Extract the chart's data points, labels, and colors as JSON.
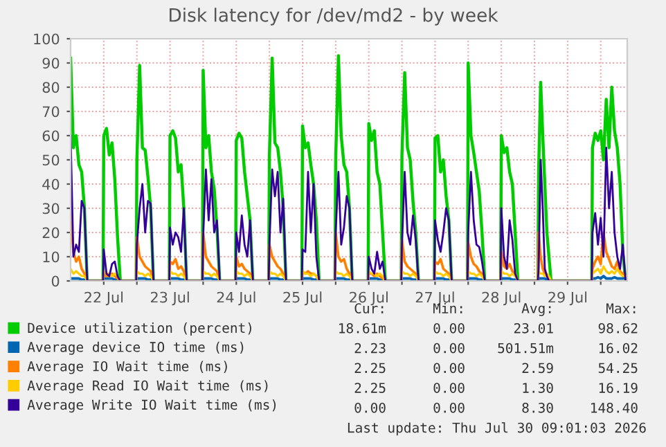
{
  "chart_data": {
    "type": "line",
    "title": "Disk latency for /dev/md2 - by week",
    "x": [
      "2026-07-22T00:00",
      "2026-07-22T01:00",
      "2026-07-22T02:00",
      "2026-07-22T03:00",
      "2026-07-22T04:00",
      "2026-07-22T05:00",
      "2026-07-22T06:00",
      "2026-07-22T11:45",
      "2026-07-22T12:00",
      "2026-07-22T13:00",
      "2026-07-22T14:00",
      "2026-07-22T15:00",
      "2026-07-22T16:00",
      "2026-07-22T17:00",
      "2026-07-22T18:00",
      "2026-07-22T23:45",
      "2026-07-23T00:00",
      "2026-07-23T01:00",
      "2026-07-23T02:00",
      "2026-07-23T03:00",
      "2026-07-23T04:00",
      "2026-07-23T05:00",
      "2026-07-23T06:00",
      "2026-07-23T11:45",
      "2026-07-23T12:00",
      "2026-07-23T13:00",
      "2026-07-23T14:00",
      "2026-07-23T15:00",
      "2026-07-23T16:00",
      "2026-07-23T17:00",
      "2026-07-23T18:00",
      "2026-07-23T23:45",
      "2026-07-24T00:00",
      "2026-07-24T01:00",
      "2026-07-24T02:00",
      "2026-07-24T03:00",
      "2026-07-24T04:00",
      "2026-07-24T05:00",
      "2026-07-24T06:00",
      "2026-07-24T11:45",
      "2026-07-24T12:00",
      "2026-07-24T13:00",
      "2026-07-24T14:00",
      "2026-07-24T15:00",
      "2026-07-24T16:00",
      "2026-07-24T17:00",
      "2026-07-24T18:00",
      "2026-07-24T23:45",
      "2026-07-25T00:00",
      "2026-07-25T01:00",
      "2026-07-25T02:00",
      "2026-07-25T03:00",
      "2026-07-25T04:00",
      "2026-07-25T05:00",
      "2026-07-25T06:00",
      "2026-07-25T11:45",
      "2026-07-25T12:00",
      "2026-07-25T13:00",
      "2026-07-25T14:00",
      "2026-07-25T15:00",
      "2026-07-25T16:00",
      "2026-07-25T17:00",
      "2026-07-25T18:00",
      "2026-07-25T23:45",
      "2026-07-26T00:00",
      "2026-07-26T01:00",
      "2026-07-26T02:00",
      "2026-07-26T03:00",
      "2026-07-26T04:00",
      "2026-07-26T05:00",
      "2026-07-26T06:00",
      "2026-07-26T11:45",
      "2026-07-26T12:00",
      "2026-07-26T13:00",
      "2026-07-26T14:00",
      "2026-07-26T15:00",
      "2026-07-26T16:00",
      "2026-07-26T17:00",
      "2026-07-26T18:00",
      "2026-07-26T23:45",
      "2026-07-27T00:00",
      "2026-07-27T01:00",
      "2026-07-27T02:00",
      "2026-07-27T03:00",
      "2026-07-27T04:00",
      "2026-07-27T05:00",
      "2026-07-27T06:00",
      "2026-07-27T11:45",
      "2026-07-27T12:00",
      "2026-07-27T13:00",
      "2026-07-27T14:00",
      "2026-07-27T15:00",
      "2026-07-27T16:00",
      "2026-07-27T17:00",
      "2026-07-27T18:00",
      "2026-07-27T23:45",
      "2026-07-28T00:00",
      "2026-07-28T01:00",
      "2026-07-28T02:00",
      "2026-07-28T03:00",
      "2026-07-28T04:00",
      "2026-07-28T05:00",
      "2026-07-28T06:00",
      "2026-07-28T11:45",
      "2026-07-28T12:00",
      "2026-07-28T13:00",
      "2026-07-28T14:00",
      "2026-07-28T15:00",
      "2026-07-28T16:00",
      "2026-07-28T17:00",
      "2026-07-28T18:00",
      "2026-07-29T01:15",
      "2026-07-29T01:30",
      "2026-07-29T02:15",
      "2026-07-29T03:00",
      "2026-07-29T03:45",
      "2026-07-29T04:30",
      "2026-07-29T05:15",
      "2026-07-29T06:00",
      "2026-07-29T20:45",
      "2026-07-29T21:00",
      "2026-07-29T22:00",
      "2026-07-29T23:00",
      "2026-07-30T00:00",
      "2026-07-30T01:00",
      "2026-07-30T02:00",
      "2026-07-30T03:00",
      "2026-07-30T04:00",
      "2026-07-30T05:00",
      "2026-07-30T06:00",
      "2026-07-30T07:00",
      "2026-07-30T08:00",
      "2026-07-30T09:00"
    ],
    "series": [
      {
        "name": "Device utilization (percent)",
        "color": "#00cc00",
        "values": [
          92,
          55,
          60,
          48,
          45,
          30,
          0,
          0,
          60,
          63,
          52,
          57,
          42,
          18,
          0,
          0,
          50,
          89,
          55,
          54,
          43,
          30,
          0,
          0,
          60,
          62,
          59,
          45,
          48,
          30,
          0,
          0,
          87,
          55,
          60,
          45,
          38,
          22,
          0,
          0,
          58,
          61,
          59,
          45,
          35,
          25,
          0,
          0,
          52,
          92,
          57,
          55,
          45,
          30,
          0,
          0,
          64,
          55,
          57,
          48,
          40,
          25,
          0,
          0,
          50,
          93,
          60,
          48,
          45,
          30,
          0,
          0,
          65,
          58,
          62,
          45,
          40,
          20,
          0,
          0,
          52,
          86,
          55,
          50,
          33,
          20,
          0,
          0,
          59,
          60,
          45,
          50,
          35,
          25,
          0,
          0,
          90,
          60,
          53,
          45,
          37,
          20,
          0,
          0,
          60,
          53,
          55,
          45,
          40,
          20,
          0,
          0,
          45,
          82,
          60,
          40,
          20,
          10,
          0,
          0,
          55,
          61,
          58,
          62,
          50,
          75,
          55,
          80,
          62,
          55,
          40,
          12,
          0
        ]
      },
      {
        "name": "Average device IO time (ms)",
        "color": "#0066b3",
        "values": [
          1,
          1,
          1,
          1,
          0.5,
          0.5,
          0,
          0,
          1,
          1,
          1,
          1,
          0.5,
          0.5,
          0,
          0,
          1,
          1,
          1,
          1,
          0.5,
          0.5,
          0,
          0,
          1,
          1,
          1,
          1,
          0.5,
          0.5,
          0,
          0,
          1,
          1,
          1,
          1,
          0.5,
          0.5,
          0,
          0,
          1,
          1,
          1,
          1,
          0.5,
          0.5,
          0,
          0,
          1,
          1,
          1,
          1,
          0.5,
          0.5,
          0,
          0,
          1,
          1,
          1,
          1,
          0.5,
          0.5,
          0,
          0,
          1,
          1,
          1,
          1,
          0.5,
          0.5,
          0,
          0,
          1,
          1,
          1,
          1,
          0.5,
          0.5,
          0,
          0,
          1,
          1,
          1,
          1,
          0.5,
          0.5,
          0,
          0,
          1,
          1,
          1,
          1,
          0.5,
          0.5,
          0,
          0,
          1,
          1,
          1,
          1,
          0.5,
          0.5,
          0,
          0,
          1,
          1,
          1,
          1,
          0.5,
          0.5,
          0,
          0,
          1,
          1,
          1,
          1,
          0.5,
          0.5,
          0,
          0,
          1,
          1,
          1.5,
          1,
          2,
          1,
          1,
          1,
          1.5,
          1,
          1,
          1,
          2
        ]
      },
      {
        "name": "Average IO Wait time (ms)",
        "color": "#ff8000",
        "values": [
          28,
          12,
          8,
          10,
          5,
          3,
          0,
          0,
          3,
          2,
          2,
          3,
          2,
          1,
          0,
          0,
          18,
          10,
          8,
          6,
          5,
          4,
          0,
          0,
          8,
          7,
          9,
          5,
          6,
          4,
          0,
          0,
          20,
          10,
          8,
          6,
          5,
          4,
          0,
          0,
          10,
          6,
          7,
          5,
          4,
          3,
          0,
          0,
          15,
          10,
          8,
          6,
          5,
          3,
          0,
          0,
          4,
          3,
          4,
          3,
          3,
          2,
          0,
          0,
          20,
          10,
          8,
          9,
          5,
          3,
          0,
          0,
          3,
          3,
          2,
          3,
          2,
          1,
          0,
          0,
          17,
          8,
          6,
          5,
          4,
          3,
          0,
          0,
          8,
          7,
          9,
          5,
          4,
          3,
          0,
          0,
          16,
          10,
          7,
          6,
          4,
          3,
          0,
          0,
          12,
          6,
          5,
          7,
          4,
          3,
          0,
          0,
          20,
          10,
          5,
          3,
          2,
          1,
          0,
          0,
          5,
          8,
          10,
          7,
          20,
          12,
          9,
          6,
          5,
          8,
          4,
          3,
          2
        ]
      },
      {
        "name": "Average Read IO Wait time (ms)",
        "color": "#ffcc00",
        "values": [
          5,
          3,
          4,
          3,
          2,
          2,
          0,
          0,
          4,
          3,
          3,
          2,
          3,
          2,
          0,
          0,
          4,
          3,
          3,
          2,
          3,
          2,
          0,
          0,
          4,
          3,
          3,
          2,
          3,
          2,
          0,
          0,
          4,
          3,
          3,
          2,
          3,
          2,
          0,
          0,
          4,
          3,
          3,
          2,
          3,
          2,
          0,
          0,
          4,
          3,
          3,
          2,
          3,
          2,
          0,
          0,
          4,
          3,
          3,
          2,
          3,
          2,
          0,
          0,
          4,
          3,
          3,
          2,
          3,
          2,
          0,
          0,
          4,
          3,
          3,
          2,
          3,
          2,
          0,
          0,
          4,
          3,
          3,
          2,
          3,
          2,
          0,
          0,
          4,
          3,
          3,
          2,
          3,
          2,
          0,
          0,
          4,
          3,
          3,
          2,
          3,
          2,
          0,
          0,
          4,
          3,
          3,
          2,
          3,
          2,
          0,
          0,
          4,
          3,
          3,
          2,
          3,
          2,
          0,
          0,
          3,
          4,
          5,
          3,
          6,
          4,
          3,
          4,
          3,
          5,
          3,
          2,
          2
        ]
      },
      {
        "name": "Average Write IO Wait time (ms)",
        "color": "#330099",
        "values": [
          60,
          10,
          15,
          12,
          33,
          30,
          0,
          0,
          13,
          3,
          2,
          7,
          8,
          2,
          0,
          0,
          15,
          30,
          40,
          20,
          33,
          32,
          0,
          0,
          22,
          15,
          20,
          18,
          12,
          30,
          0,
          0,
          18,
          46,
          25,
          42,
          20,
          25,
          0,
          0,
          20,
          12,
          27,
          15,
          10,
          25,
          0,
          0,
          15,
          46,
          35,
          45,
          20,
          34,
          0,
          0,
          13,
          12,
          45,
          20,
          40,
          10,
          0,
          0,
          20,
          45,
          15,
          22,
          35,
          30,
          0,
          0,
          10,
          5,
          3,
          12,
          5,
          8,
          0,
          0,
          15,
          45,
          20,
          15,
          27,
          17,
          0,
          0,
          25,
          17,
          12,
          20,
          30,
          25,
          0,
          0,
          20,
          45,
          25,
          15,
          14,
          8,
          0,
          0,
          30,
          10,
          5,
          25,
          17,
          3,
          0,
          0,
          5,
          50,
          30,
          5,
          2,
          0,
          0,
          0,
          20,
          28,
          15,
          26,
          10,
          55,
          30,
          45,
          20,
          10,
          5,
          15,
          0
        ]
      }
    ],
    "xlim": [
      "2026-07-22T00:00",
      "2026-07-30T09:36"
    ],
    "xticks": [
      {
        "value": "2026-07-22T12:00",
        "label": "22 Jul"
      },
      {
        "value": "2026-07-23",
        "label": null
      },
      {
        "value": "2026-07-23T12:00",
        "label": "23 Jul"
      },
      {
        "value": "2026-07-24",
        "label": null
      },
      {
        "value": "2026-07-24T12:00",
        "label": "24 Jul"
      },
      {
        "value": "2026-07-25",
        "label": null
      },
      {
        "value": "2026-07-25T12:00",
        "label": "25 Jul"
      },
      {
        "value": "2026-07-26",
        "label": null
      },
      {
        "value": "2026-07-26T12:00",
        "label": "26 Jul"
      },
      {
        "value": "2026-07-27",
        "label": null
      },
      {
        "value": "2026-07-27T12:00",
        "label": "27 Jul"
      },
      {
        "value": "2026-07-28",
        "label": null
      },
      {
        "value": "2026-07-28T12:00",
        "label": "28 Jul"
      },
      {
        "value": "2026-07-29",
        "label": null
      },
      {
        "value": "2026-07-29T12:00",
        "label": "29 Jul"
      },
      {
        "value": "2026-07-30",
        "label": null
      }
    ],
    "ylim": [
      0,
      100
    ],
    "yticks": [
      0,
      10,
      20,
      30,
      40,
      50,
      60,
      70,
      80,
      90,
      100
    ],
    "grid": true,
    "legend": "bottom",
    "annotations": [
      "Cur:",
      "Min:",
      "Avg:",
      "Max:",
      "18.61m",
      "0.00",
      "23.01",
      "98.62",
      "2.23",
      "0.00",
      "501.51m",
      "16.02",
      "2.25",
      "0.00",
      "2.59",
      "54.25",
      "2.25",
      "0.00",
      "1.30",
      "16.19",
      "0.00",
      "0.00",
      "8.30",
      "148.40",
      "Last update: Thu Jul 30 09:01:03 2026"
    ]
  }
}
